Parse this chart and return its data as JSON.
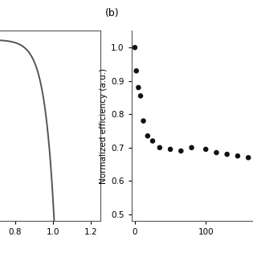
{
  "panel_a": {
    "x_ticks": [
      0.8,
      1.0,
      1.2
    ],
    "x_lim": [
      0.72,
      1.25
    ],
    "y_lim": [
      -0.02,
      1.05
    ],
    "line_color": "#555555",
    "line_width": 1.4,
    "Voc": 1.005,
    "sharpness": 20
  },
  "panel_b": {
    "label": "(b)",
    "ylabel": "Normalized efficiency (a.u.)",
    "x_ticks": [
      0,
      100
    ],
    "y_ticks": [
      0.5,
      0.6,
      0.7,
      0.8,
      0.9,
      1.0
    ],
    "x_lim": [
      -5,
      165
    ],
    "y_lim": [
      0.48,
      1.05
    ],
    "marker_color": "#111111",
    "marker_size": 22,
    "x_data": [
      0,
      2,
      5,
      8,
      12,
      18,
      25,
      35,
      50,
      65,
      80,
      100,
      115,
      130,
      145,
      160
    ],
    "y_data": [
      1.0,
      0.93,
      0.88,
      0.855,
      0.78,
      0.735,
      0.72,
      0.7,
      0.695,
      0.69,
      0.7,
      0.695,
      0.685,
      0.68,
      0.675,
      0.67
    ]
  },
  "background_color": "#ffffff",
  "fig_width": 3.2,
  "fig_height": 3.2,
  "dpi": 100
}
